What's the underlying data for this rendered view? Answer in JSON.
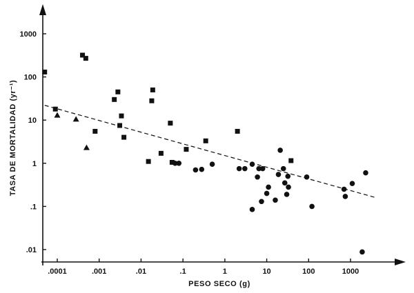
{
  "chart_data": {
    "type": "scatter",
    "title": "",
    "xlabel": "PESO SECO (g)",
    "ylabel": "TASA DE MORTALIDAD (yr⁻¹)",
    "x_scale": "log",
    "y_scale": "log",
    "xlim": [
      4e-05,
      8000
    ],
    "ylim": [
      0.007,
      2500
    ],
    "grid": false,
    "legend": "none",
    "x_ticks": [
      {
        "value": 0.0001,
        "label": ".0001"
      },
      {
        "value": 0.001,
        "label": ".001"
      },
      {
        "value": 0.01,
        "label": ".01"
      },
      {
        "value": 0.1,
        "label": ".1"
      },
      {
        "value": 1,
        "label": "1"
      },
      {
        "value": 10,
        "label": "10"
      },
      {
        "value": 100,
        "label": "100"
      },
      {
        "value": 1000,
        "label": "1000"
      }
    ],
    "y_ticks": [
      {
        "value": 0.01,
        "label": ".01"
      },
      {
        "value": 0.1,
        "label": ".1"
      },
      {
        "value": 1,
        "label": "1"
      },
      {
        "value": 10,
        "label": "10"
      },
      {
        "value": 100,
        "label": "100"
      },
      {
        "value": 1000,
        "label": "1000"
      }
    ],
    "series": [
      {
        "marker": "square",
        "points": [
          {
            "x": 5e-05,
            "y": 130
          },
          {
            "x": 9e-05,
            "y": 18
          },
          {
            "x": 0.0004,
            "y": 320
          },
          {
            "x": 0.00048,
            "y": 270
          },
          {
            "x": 0.0008,
            "y": 5.5
          },
          {
            "x": 0.0023,
            "y": 30
          },
          {
            "x": 0.0028,
            "y": 45
          },
          {
            "x": 0.0031,
            "y": 7.5
          },
          {
            "x": 0.0034,
            "y": 12.5
          },
          {
            "x": 0.0039,
            "y": 4
          },
          {
            "x": 0.015,
            "y": 1.1
          },
          {
            "x": 0.018,
            "y": 28
          },
          {
            "x": 0.019,
            "y": 50
          },
          {
            "x": 0.03,
            "y": 1.7
          },
          {
            "x": 0.05,
            "y": 8.5
          },
          {
            "x": 0.055,
            "y": 1.05
          },
          {
            "x": 0.12,
            "y": 2.1
          },
          {
            "x": 0.35,
            "y": 3.3
          },
          {
            "x": 2,
            "y": 5.5
          },
          {
            "x": 38,
            "y": 1.15
          }
        ]
      },
      {
        "marker": "triangle",
        "points": [
          {
            "x": 0.0001,
            "y": 13
          },
          {
            "x": 0.00028,
            "y": 10.5
          },
          {
            "x": 0.0005,
            "y": 2.3
          }
        ]
      },
      {
        "marker": "circle",
        "points": [
          {
            "x": 0.065,
            "y": 1.0
          },
          {
            "x": 0.08,
            "y": 1.0
          },
          {
            "x": 0.2,
            "y": 0.7
          },
          {
            "x": 0.28,
            "y": 0.72
          },
          {
            "x": 0.5,
            "y": 0.95
          },
          {
            "x": 2.2,
            "y": 0.75
          },
          {
            "x": 3,
            "y": 0.75
          },
          {
            "x": 4.5,
            "y": 0.95
          },
          {
            "x": 4.5,
            "y": 0.085
          },
          {
            "x": 6,
            "y": 0.48
          },
          {
            "x": 6.5,
            "y": 0.75
          },
          {
            "x": 7.5,
            "y": 0.13
          },
          {
            "x": 8,
            "y": 0.75
          },
          {
            "x": 10,
            "y": 0.2
          },
          {
            "x": 11,
            "y": 0.28
          },
          {
            "x": 16,
            "y": 0.14
          },
          {
            "x": 19,
            "y": 0.55
          },
          {
            "x": 21,
            "y": 2.0
          },
          {
            "x": 25,
            "y": 0.75
          },
          {
            "x": 27,
            "y": 0.35
          },
          {
            "x": 30,
            "y": 0.19
          },
          {
            "x": 32,
            "y": 0.5
          },
          {
            "x": 33,
            "y": 0.28
          },
          {
            "x": 90,
            "y": 0.48
          },
          {
            "x": 120,
            "y": 0.1
          },
          {
            "x": 700,
            "y": 0.25
          },
          {
            "x": 750,
            "y": 0.17
          },
          {
            "x": 1100,
            "y": 0.34
          },
          {
            "x": 1900,
            "y": 0.0088
          },
          {
            "x": 2300,
            "y": 0.6
          }
        ]
      }
    ],
    "trendline": {
      "style": "dashed",
      "x": [
        5e-05,
        4000
      ],
      "y": [
        22,
        0.16
      ]
    }
  }
}
